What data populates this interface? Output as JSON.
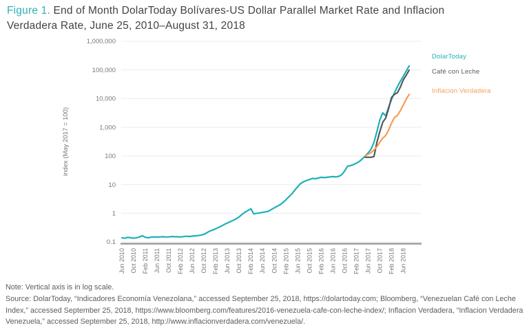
{
  "title": {
    "figure_label": "Figure 1.",
    "text": "End of Month DolarToday Bolívares-US Dollar Parallel Market Rate and Inflacion Verdadera Rate, June 25, 2010–August 31, 2018"
  },
  "notes": {
    "note": "Note: Vertical axis is in log scale.",
    "source": "Source: DolarToday, “Indicadores Economía Venezolana,” accessed September 25, 2018, https://dolartoday.com; Bloomberg, “Venezuelan Café con Leche Index,” accessed September 25, 2018, https://www.bloomberg.com/features/2016-venezuela-cafe-con-leche-index/; Inflacion Verdadera, “Inflacion Verdadera Venezuela,” accessed September 25, 2018, http://www.inflacionverdadera.com/venezuela/."
  },
  "chart_data": {
    "type": "line",
    "title": "End of Month DolarToday Bolívares-US Dollar Parallel Market Rate and Inflacion Verdadera Rate, June 25, 2010–August 31, 2018",
    "xlabel": "",
    "ylabel": "index (May 2017 = 100)",
    "y_scale": "log",
    "ylim": [
      0.1,
      1000000
    ],
    "grid": "horizontal",
    "legend_position": "right",
    "y_ticks": [
      {
        "label": "1,000,000",
        "value": 1000000
      },
      {
        "label": "100,000",
        "value": 100000
      },
      {
        "label": "10,000",
        "value": 10000
      },
      {
        "label": "1,000",
        "value": 1000
      },
      {
        "label": "100",
        "value": 100
      },
      {
        "label": "10",
        "value": 10
      },
      {
        "label": "1",
        "value": 1
      },
      {
        "label": "0.1",
        "value": 0.1
      }
    ],
    "x_tick_labels": [
      "Jun 2010",
      "Oct 2010",
      "Feb 2011",
      "Jun 2011",
      "Oct 2011",
      "Feb 2012",
      "Jun 2012",
      "Oct 2012",
      "Feb 2013",
      "Jun 2013",
      "Oct 2013",
      "Feb 2014",
      "Jun 2014",
      "Oct 2014",
      "Feb 2015",
      "Jun 2015",
      "Oct 2015",
      "Feb 2016",
      "Jun 2016",
      "Oct 2016",
      "Feb 2017",
      "Jun 2017",
      "Oct 2017",
      "Feb 2018",
      "Jun 2018"
    ],
    "x_tick_interval_months": 4,
    "months_total": 98,
    "x_start": "Jun 2010",
    "x_end": "Aug 2018",
    "series": [
      {
        "name": "DolarToday",
        "color": "#1cb0b7",
        "start_month": 0,
        "values": [
          0.14,
          0.135,
          0.145,
          0.14,
          0.135,
          0.14,
          0.15,
          0.165,
          0.145,
          0.14,
          0.148,
          0.15,
          0.148,
          0.15,
          0.152,
          0.149,
          0.15,
          0.155,
          0.152,
          0.151,
          0.15,
          0.154,
          0.158,
          0.155,
          0.16,
          0.163,
          0.167,
          0.175,
          0.185,
          0.21,
          0.24,
          0.26,
          0.29,
          0.32,
          0.36,
          0.41,
          0.46,
          0.51,
          0.57,
          0.64,
          0.75,
          0.92,
          1.1,
          1.25,
          1.43,
          0.95,
          1.0,
          1.03,
          1.08,
          1.12,
          1.18,
          1.35,
          1.55,
          1.75,
          2.0,
          2.4,
          3.0,
          3.8,
          4.8,
          6.5,
          8.5,
          11,
          12.5,
          14,
          15,
          16.5,
          16,
          17,
          18,
          17.5,
          18,
          18.5,
          19,
          18.5,
          19.5,
          22,
          30,
          44,
          46,
          50,
          56,
          64,
          78,
          100,
          128,
          170,
          300,
          700,
          1800,
          3200,
          2500,
          5000,
          9500,
          16000,
          26000,
          40000,
          60000,
          90000,
          138000
        ]
      },
      {
        "name": "Café con Leche",
        "color": "#53575b",
        "start_month": 83,
        "values": [
          90,
          90,
          90,
          95,
          300,
          700,
          1500,
          2100,
          4500,
          11000,
          14000,
          16000,
          25000,
          45000,
          65000,
          98000
        ]
      },
      {
        "name": "Inflacion Verdadera",
        "color": "#f59d52",
        "start_month": 83,
        "values": [
          100,
          115,
          130,
          160,
          210,
          300,
          420,
          520,
          800,
          1400,
          2200,
          2600,
          3800,
          6000,
          9500,
          14000
        ]
      }
    ]
  },
  "colors": {
    "accent_teal": "#1cb0b7",
    "figure_label_teal": "#2fb0b7",
    "series_gray": "#53575b",
    "series_orange": "#f59d52",
    "title_text": "#414347",
    "axis_text": "#76777b",
    "gridline": "#ececed",
    "axis_line": "#96989b",
    "note_text": "#5a5c5f"
  }
}
